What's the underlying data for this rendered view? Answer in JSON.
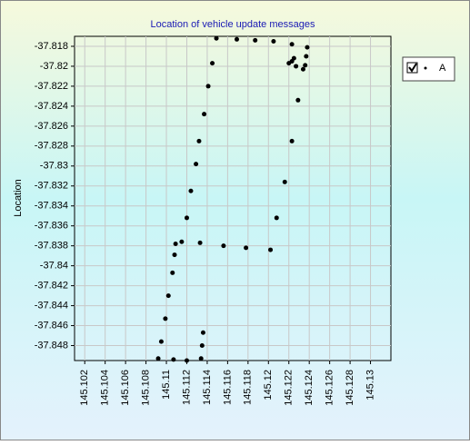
{
  "chart_data": {
    "type": "scatter",
    "title": "Location of vehicle update messages",
    "y_label": "Location",
    "xlim": [
      145.101,
      145.132
    ],
    "ylim": [
      -37.8495,
      -37.817
    ],
    "xticks": [
      145.102,
      145.104,
      145.106,
      145.108,
      145.11,
      145.112,
      145.114,
      145.116,
      145.118,
      145.12,
      145.122,
      145.124,
      145.126,
      145.128,
      145.13
    ],
    "yticks": [
      -37.818,
      -37.82,
      -37.822,
      -37.824,
      -37.826,
      -37.828,
      -37.83,
      -37.832,
      -37.834,
      -37.836,
      -37.838,
      -37.84,
      -37.842,
      -37.844,
      -37.846,
      -37.848
    ],
    "grid": true,
    "legend": "right",
    "series": [
      {
        "name": "A",
        "color": "#000000",
        "x": [
          145.1136,
          145.1135,
          145.1134,
          145.112,
          145.1107,
          145.1092,
          145.1095,
          145.1099,
          145.1102,
          145.1106,
          145.1108,
          145.1109,
          145.1115,
          145.112,
          145.1124,
          145.1129,
          145.1132,
          145.1137,
          145.1141,
          145.1145,
          145.1149,
          145.1169,
          145.1187,
          145.1205,
          145.1223,
          145.1238,
          145.1237,
          145.1236,
          145.1227,
          145.1223,
          145.1225,
          145.122,
          145.1234,
          145.1229,
          145.1223,
          145.1216,
          145.1208,
          145.1202,
          145.1178,
          145.1156,
          145.1133
        ],
        "y": [
          -37.8467,
          -37.848,
          -37.8493,
          -37.8495,
          -37.8494,
          -37.8493,
          -37.8476,
          -37.8453,
          -37.843,
          -37.8407,
          -37.8389,
          -37.8378,
          -37.8376,
          -37.8352,
          -37.8325,
          -37.8298,
          -37.8275,
          -37.8248,
          -37.822,
          -37.8197,
          -37.8172,
          -37.8173,
          -37.8174,
          -37.8175,
          -37.8178,
          -37.8181,
          -37.819,
          -37.8199,
          -37.82,
          -37.8195,
          -37.8192,
          -37.8197,
          -37.8203,
          -37.8234,
          -37.8275,
          -37.8316,
          -37.8352,
          -37.8384,
          -37.8382,
          -37.838,
          -37.8377
        ]
      }
    ]
  }
}
